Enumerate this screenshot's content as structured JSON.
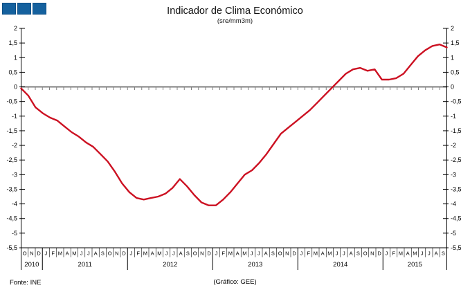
{
  "title": "Indicador de Clima Económico",
  "subtitle": "(sre/mm3m)",
  "footer": {
    "source": "Fonte: INE",
    "credit": "(Gráfico: GEE)"
  },
  "logo": {
    "square_count": 3,
    "fill_color": "#15619E",
    "border_color": "#0D4E85"
  },
  "chart_data": {
    "type": "line",
    "title": "Indicador de Clima Económico",
    "subtitle": "(sre/mm3m)",
    "line_color": "#CC1122",
    "zero_line_color": "#808080",
    "axis_color": "#000000",
    "ylim": [
      -5.5,
      2
    ],
    "ytick_step": 0.5,
    "ytick_labels": [
      "2",
      "1,5",
      "1",
      "0,5",
      "0",
      "-0,5",
      "-1",
      "-1,5",
      "-2",
      "-2,5",
      "-3",
      "-3,5",
      "-4",
      "-4,5",
      "-5",
      "-5,5"
    ],
    "legend": "none",
    "grid": "off",
    "months": [
      "O",
      "N",
      "D",
      "J",
      "F",
      "M",
      "A",
      "M",
      "J",
      "J",
      "A",
      "S",
      "O",
      "N",
      "D",
      "J",
      "F",
      "M",
      "A",
      "M",
      "J",
      "J",
      "A",
      "S",
      "O",
      "N",
      "D",
      "J",
      "F",
      "M",
      "A",
      "M",
      "J",
      "J",
      "A",
      "S",
      "O",
      "N",
      "D",
      "J",
      "F",
      "M",
      "A",
      "M",
      "J",
      "J",
      "A",
      "S",
      "O",
      "N",
      "D",
      "J",
      "F",
      "M",
      "A",
      "M",
      "J",
      "J",
      "A",
      "S"
    ],
    "years": [
      {
        "label": "2010",
        "month_count": 3
      },
      {
        "label": "2011",
        "month_count": 12
      },
      {
        "label": "2012",
        "month_count": 12
      },
      {
        "label": "2013",
        "month_count": 12
      },
      {
        "label": "2014",
        "month_count": 12
      },
      {
        "label": "2015",
        "month_count": 9
      }
    ],
    "values": [
      -0.05,
      -0.3,
      -0.7,
      -0.9,
      -1.05,
      -1.15,
      -1.35,
      -1.55,
      -1.7,
      -1.9,
      -2.05,
      -2.3,
      -2.55,
      -2.9,
      -3.3,
      -3.6,
      -3.8,
      -3.85,
      -3.8,
      -3.75,
      -3.65,
      -3.45,
      -3.15,
      -3.4,
      -3.7,
      -3.95,
      -4.05,
      -4.05,
      -3.85,
      -3.6,
      -3.3,
      -3.0,
      -2.85,
      -2.6,
      -2.3,
      -1.95,
      -1.6,
      -1.4,
      -1.2,
      -1.0,
      -0.8,
      -0.55,
      -0.3,
      -0.05,
      0.2,
      0.45,
      0.6,
      0.65,
      0.55,
      0.6,
      0.25,
      0.25,
      0.3,
      0.45,
      0.75,
      1.05,
      1.25,
      1.4,
      1.45,
      1.35
    ]
  }
}
